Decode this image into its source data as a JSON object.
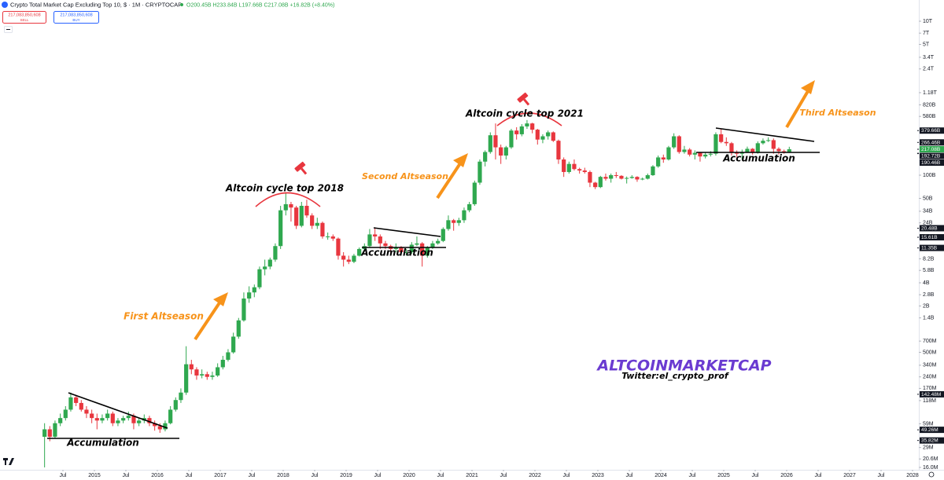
{
  "header": {
    "title": "Crypto Total Market Cap Excluding Top 10, $ · 1M · CRYPTOCAP",
    "ohlc": "O200.45B H233.84B L197.66B C217.08B +16.82B (+8.40%)",
    "sell_price": "217,083,850,608",
    "sell": "SELL",
    "buy_price": "217,083,850,608",
    "buy": "BUY"
  },
  "chart_data": {
    "type": "candlestick",
    "log_scale": true,
    "up_color": "#2fa84f",
    "down_color": "#e8363e",
    "xlim": [
      2013.5,
      2028.1
    ],
    "xticks": [
      {
        "value": 2014.5,
        "label": "Jul"
      },
      2015,
      {
        "value": 2015.5,
        "label": "Jul"
      },
      2016,
      {
        "value": 2016.5,
        "label": "Jul"
      },
      2017,
      {
        "value": 2017.5,
        "label": "Jul"
      },
      2018,
      {
        "value": 2018.5,
        "label": "Jul"
      },
      2019,
      {
        "value": 2019.5,
        "label": "Jul"
      },
      2020,
      {
        "value": 2020.5,
        "label": "Jul"
      },
      2021,
      {
        "value": 2021.5,
        "label": "Jul"
      },
      2022,
      {
        "value": 2022.5,
        "label": "Jul"
      },
      2023,
      {
        "value": 2023.5,
        "label": "Jul"
      },
      2024,
      {
        "value": 2024.5,
        "label": "Jul"
      },
      2025,
      {
        "value": 2025.5,
        "label": "Jul"
      },
      2026,
      {
        "value": 2026.5,
        "label": "Jul"
      },
      2027,
      {
        "value": 2027.5,
        "label": "Jul"
      },
      2028
    ],
    "ylim": [
      0.0149,
      18860
    ],
    "yticks": [
      {
        "value": 10000,
        "label": "10T"
      },
      {
        "value": 7000,
        "label": "7T"
      },
      {
        "value": 5000,
        "label": "5T"
      },
      {
        "value": 3400,
        "label": "3.4T"
      },
      {
        "value": 2400,
        "label": "2.4T"
      },
      {
        "value": 1180,
        "label": "1.18T"
      },
      {
        "value": 820,
        "label": "820B"
      },
      {
        "value": 580,
        "label": "580B"
      },
      {
        "value": 100,
        "label": "100B"
      },
      {
        "value": 50,
        "label": "50B"
      },
      {
        "value": 34,
        "label": "34B"
      },
      {
        "value": 24,
        "label": "24B"
      },
      {
        "value": 8.2,
        "label": "8.2B"
      },
      {
        "value": 5.8,
        "label": "5.8B"
      },
      {
        "value": 4,
        "label": "4B"
      },
      {
        "value": 2.8,
        "label": "2.8B"
      },
      {
        "value": 2,
        "label": "2B"
      },
      {
        "value": 1.4,
        "label": "1.4B"
      },
      {
        "value": 0.7,
        "label": "700M"
      },
      {
        "value": 0.5,
        "label": "500M"
      },
      {
        "value": 0.34,
        "label": "340M"
      },
      {
        "value": 0.24,
        "label": "240M"
      },
      {
        "value": 0.17,
        "label": "170M"
      },
      {
        "value": 0.118,
        "label": "118M"
      },
      {
        "value": 0.059,
        "label": "59M"
      },
      {
        "value": 0.029,
        "label": "29M"
      },
      {
        "value": 0.0206,
        "label": "20.6M"
      },
      {
        "value": 0.016,
        "label": "16.0M"
      }
    ],
    "price_labels": [
      {
        "value": 379.66,
        "label": "379.66B"
      },
      {
        "value": 266.46,
        "label": "266.46B"
      },
      {
        "value": 217.08,
        "label": "217.08B"
      },
      {
        "value": 192.72,
        "label": "192.72B"
      },
      {
        "value": 190.46,
        "label": "190.46B"
      },
      {
        "value": 20.48,
        "label": "20.48B"
      },
      {
        "value": 15.61,
        "label": "15.61B"
      },
      {
        "value": 11.35,
        "label": "11.35B"
      },
      {
        "value": 0.14248,
        "label": "142.48M"
      },
      {
        "value": 0.04926,
        "label": "49.26M"
      },
      {
        "value": 0.03582,
        "label": "35.82M"
      }
    ],
    "annotations": [
      "First Altseason",
      "Second Altseason",
      "Third Altseason",
      "Altcoin cycle top 2018",
      "Altcoin cycle top 2021",
      "Accumulation",
      "Accumulation",
      "Accumulation",
      "ALTCOINMARKETCAP",
      "Twitter:el_crypto_prof"
    ],
    "x": [
      2014.167,
      2014.25,
      2014.333,
      2014.417,
      2014.5,
      2014.583,
      2014.667,
      2014.75,
      2014.833,
      2014.917,
      2015,
      2015.083,
      2015.167,
      2015.25,
      2015.333,
      2015.417,
      2015.5,
      2015.583,
      2015.667,
      2015.75,
      2015.833,
      2015.917,
      2016,
      2016.083,
      2016.167,
      2016.25,
      2016.333,
      2016.417,
      2016.5,
      2016.583,
      2016.667,
      2016.75,
      2016.833,
      2016.917,
      2017,
      2017.083,
      2017.167,
      2017.25,
      2017.333,
      2017.417,
      2017.5,
      2017.583,
      2017.667,
      2017.75,
      2017.833,
      2017.917,
      2018,
      2018.083,
      2018.167,
      2018.25,
      2018.333,
      2018.417,
      2018.5,
      2018.583,
      2018.667,
      2018.75,
      2018.833,
      2018.917,
      2019,
      2019.083,
      2019.167,
      2019.25,
      2019.333,
      2019.417,
      2019.5,
      2019.583,
      2019.667,
      2019.75,
      2019.833,
      2019.917,
      2020,
      2020.083,
      2020.167,
      2020.25,
      2020.333,
      2020.417,
      2020.5,
      2020.583,
      2020.667,
      2020.75,
      2020.833,
      2020.917,
      2021,
      2021.083,
      2021.167,
      2021.25,
      2021.333,
      2021.417,
      2021.5,
      2021.583,
      2021.667,
      2021.75,
      2021.833,
      2021.917,
      2022,
      2022.083,
      2022.167,
      2022.25,
      2022.333,
      2022.417,
      2022.5,
      2022.583,
      2022.667,
      2022.75,
      2022.833,
      2022.917,
      2023,
      2023.083,
      2023.167,
      2023.25,
      2023.333,
      2023.417,
      2023.5,
      2023.583,
      2023.667,
      2023.75,
      2023.833,
      2023.917,
      2024,
      2024.083,
      2024.167,
      2024.25,
      2024.333,
      2024.417,
      2024.5,
      2024.583,
      2024.667,
      2024.75,
      2024.833,
      2024.917,
      2025,
      2025.083,
      2025.167,
      2025.25,
      2025.333,
      2025.417,
      2025.5,
      2025.583,
      2025.667,
      2025.75,
      2025.833,
      2025.917,
      2026
    ],
    "open": [
      0.04,
      0.05,
      0.04,
      0.06,
      0.07,
      0.09,
      0.13,
      0.11,
      0.09,
      0.08,
      0.07,
      0.065,
      0.07,
      0.08,
      0.06,
      0.065,
      0.07,
      0.075,
      0.06,
      0.065,
      0.07,
      0.06,
      0.055,
      0.05,
      0.06,
      0.09,
      0.12,
      0.15,
      0.35,
      0.3,
      0.25,
      0.26,
      0.24,
      0.25,
      0.32,
      0.4,
      0.5,
      0.8,
      1.3,
      2.5,
      3,
      3.5,
      6,
      6.5,
      8,
      12,
      35,
      42,
      38,
      22,
      40,
      30,
      22,
      24,
      16,
      16,
      15,
      9,
      8,
      7.5,
      9,
      11,
      12,
      17,
      16,
      13,
      12,
      11,
      11.5,
      10,
      10,
      12.5,
      13,
      9,
      11.5,
      13,
      14,
      20,
      26,
      24,
      26,
      35,
      42,
      80,
      150,
      200,
      330,
      230,
      180,
      230,
      380,
      340,
      430,
      470,
      390,
      290,
      320,
      360,
      280,
      160,
      110,
      140,
      120,
      115,
      110,
      80,
      70,
      95,
      90,
      100,
      98,
      90,
      92,
      95,
      88,
      90,
      100,
      130,
      170,
      160,
      230,
      320,
      200,
      215,
      185,
      195,
      175,
      185,
      190,
      340,
      270,
      260,
      195,
      190,
      200,
      220,
      195,
      260,
      280,
      285,
      220,
      205,
      200.45
    ],
    "high": [
      0.06,
      0.055,
      0.065,
      0.08,
      0.1,
      0.15,
      0.14,
      0.12,
      0.1,
      0.09,
      0.08,
      0.078,
      0.09,
      0.085,
      0.07,
      0.075,
      0.085,
      0.08,
      0.07,
      0.078,
      0.075,
      0.065,
      0.06,
      0.065,
      0.1,
      0.13,
      0.17,
      0.6,
      0.4,
      0.32,
      0.3,
      0.28,
      0.28,
      0.36,
      0.45,
      0.55,
      0.9,
      1.4,
      3,
      3.6,
      3.8,
      6.5,
      8,
      8.5,
      13,
      40,
      60,
      45,
      40,
      45,
      48,
      32,
      28,
      25,
      18,
      17,
      15.5,
      10,
      9,
      9.5,
      11.5,
      13,
      20,
      21,
      17,
      14,
      12.5,
      13,
      12,
      11,
      13.5,
      16,
      13.5,
      12,
      14,
      15,
      21,
      30,
      27,
      28,
      38,
      45,
      85,
      160,
      210,
      360,
      470,
      250,
      240,
      400,
      420,
      460,
      520,
      480,
      400,
      340,
      380,
      370,
      290,
      170,
      150,
      160,
      125,
      125,
      115,
      82,
      98,
      105,
      105,
      110,
      100,
      96,
      100,
      97,
      93,
      105,
      135,
      180,
      185,
      240,
      350,
      330,
      240,
      225,
      210,
      200,
      195,
      205,
      360,
      400,
      310,
      270,
      210,
      215,
      235,
      225,
      275,
      300,
      310,
      300,
      230,
      215,
      233.84
    ],
    "low": [
      0.016,
      0.035,
      0.038,
      0.055,
      0.065,
      0.085,
      0.1,
      0.085,
      0.07,
      0.06,
      0.05,
      0.06,
      0.065,
      0.055,
      0.055,
      0.06,
      0.065,
      0.05,
      0.055,
      0.06,
      0.055,
      0.048,
      0.045,
      0.047,
      0.058,
      0.085,
      0.11,
      0.14,
      0.26,
      0.22,
      0.23,
      0.22,
      0.22,
      0.24,
      0.3,
      0.38,
      0.48,
      0.75,
      1.25,
      2.2,
      2.6,
      3.3,
      5,
      6,
      7.5,
      11,
      30,
      25,
      20,
      21,
      28,
      20,
      20,
      15,
      14.5,
      14,
      8,
      6.5,
      7,
      7.2,
      8.8,
      10.5,
      11.5,
      14,
      11,
      11,
      9.5,
      10,
      9.5,
      9,
      9.5,
      12,
      6.5,
      8.5,
      11,
      12.5,
      13.5,
      19,
      19,
      22,
      24,
      33,
      40,
      75,
      130,
      190,
      160,
      140,
      160,
      220,
      290,
      320,
      400,
      350,
      250,
      260,
      290,
      270,
      140,
      95,
      105,
      115,
      105,
      105,
      70,
      66,
      68,
      85,
      80,
      92,
      88,
      78,
      90,
      82,
      86,
      88,
      98,
      125,
      145,
      155,
      220,
      190,
      190,
      175,
      160,
      150,
      165,
      175,
      180,
      260,
      240,
      180,
      170,
      160,
      195,
      185,
      190,
      250,
      270,
      190,
      185,
      190,
      197.66
    ],
    "close": [
      0.05,
      0.04,
      0.06,
      0.07,
      0.09,
      0.13,
      0.11,
      0.09,
      0.08,
      0.07,
      0.065,
      0.07,
      0.08,
      0.06,
      0.065,
      0.07,
      0.075,
      0.06,
      0.065,
      0.07,
      0.06,
      0.055,
      0.05,
      0.06,
      0.09,
      0.12,
      0.15,
      0.35,
      0.3,
      0.25,
      0.26,
      0.24,
      0.25,
      0.32,
      0.4,
      0.5,
      0.8,
      1.3,
      2.5,
      3,
      3.5,
      6,
      6.5,
      8,
      12,
      35,
      42,
      38,
      22,
      40,
      30,
      22,
      24,
      16,
      16,
      15,
      9,
      8,
      7.5,
      9,
      11,
      12,
      17,
      16,
      13,
      12,
      11,
      11.5,
      10,
      10,
      12.5,
      13,
      9,
      11.5,
      13,
      14,
      20,
      26,
      24,
      26,
      35,
      42,
      80,
      150,
      200,
      330,
      230,
      180,
      230,
      380,
      340,
      430,
      470,
      390,
      290,
      320,
      360,
      280,
      160,
      110,
      140,
      120,
      115,
      110,
      80,
      70,
      95,
      90,
      100,
      98,
      90,
      92,
      95,
      88,
      90,
      100,
      130,
      170,
      160,
      230,
      320,
      200,
      215,
      185,
      195,
      175,
      185,
      190,
      340,
      270,
      260,
      195,
      190,
      200,
      220,
      195,
      260,
      280,
      285,
      220,
      205,
      200.45,
      217.08
    ]
  }
}
